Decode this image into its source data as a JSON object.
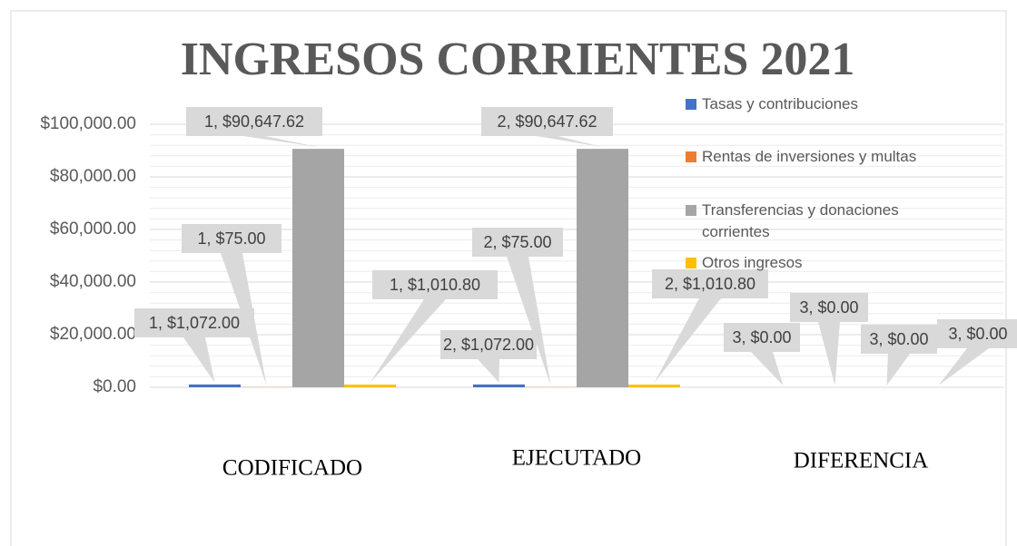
{
  "chart_data": {
    "type": "bar",
    "title": "INGRESOS CORRIENTES 2021",
    "categories": [
      "CODIFICADO",
      "EJECUTADO",
      "DIFERENCIA"
    ],
    "series": [
      {
        "name": "Tasas y contribuciones",
        "color": "#4472c4",
        "values": [
          1072,
          1072,
          0
        ],
        "value_labels": [
          "1, $1,072.00",
          "2, $1,072.00",
          "3, $0.00"
        ]
      },
      {
        "name": "Rentas de inversiones y multas",
        "color": "#ed7d31",
        "values": [
          75,
          75,
          0
        ],
        "value_labels": [
          "1, $75.00",
          "2, $75.00",
          "3, $0.00"
        ]
      },
      {
        "name": "Transferencias y donaciones corrientes",
        "color": "#a5a5a5",
        "values": [
          90647.62,
          90647.62,
          0
        ],
        "value_labels": [
          "1, $90,647.62",
          "2, $90,647.62",
          "3, $0.00"
        ]
      },
      {
        "name": "Otros ingresos",
        "color": "#ffc000",
        "values": [
          1010.8,
          1010.8,
          0
        ],
        "value_labels": [
          "1, $1,010.80",
          "2, $1,010.80",
          "3, $0.00"
        ]
      }
    ],
    "ylim": [
      0,
      100000
    ],
    "yticks": [
      {
        "value": 0,
        "label": "$0.00"
      },
      {
        "value": 20000,
        "label": "$20,000.00"
      },
      {
        "value": 40000,
        "label": "$40,000.00"
      },
      {
        "value": 60000,
        "label": "$60,000.00"
      },
      {
        "value": 80000,
        "label": "$80,000.00"
      },
      {
        "value": 100000,
        "label": "$100,000.00"
      }
    ],
    "grid": true,
    "legend": "right"
  }
}
